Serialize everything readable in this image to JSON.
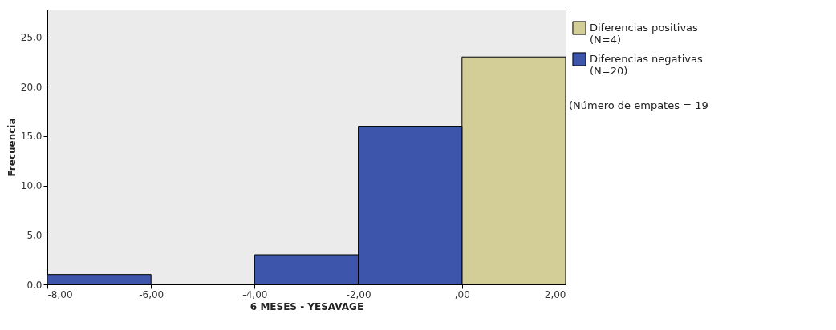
{
  "chart_data": {
    "type": "histogram",
    "xlabel": "6 MESES - YESAVAGE",
    "ylabel": "Frecuencia",
    "bins": [
      -8,
      -6,
      -4,
      -2,
      0,
      2
    ],
    "series": [
      {
        "name": "Diferencias positivas (N=4)",
        "color": "#d3ce97",
        "values": [
          null,
          null,
          null,
          null,
          23
        ]
      },
      {
        "name": "Diferencias negativas (N=20)",
        "color": "#3d56ab",
        "values": [
          1,
          0,
          3,
          16,
          null
        ]
      }
    ],
    "annotations": [
      "(Número de empates = 19"
    ],
    "xlim": [
      -8,
      2
    ],
    "xticks": [
      {
        "value": -8,
        "label": "-8,00"
      },
      {
        "value": -6,
        "label": "-6,00"
      },
      {
        "value": -4,
        "label": "-4,00"
      },
      {
        "value": -2,
        "label": "-2,00"
      },
      {
        "value": 0,
        "label": ",00"
      },
      {
        "value": 2,
        "label": "2,00"
      }
    ],
    "ylim": [
      0,
      27.8
    ],
    "yticks": [
      {
        "value": 0,
        "label": "0,0"
      },
      {
        "value": 5,
        "label": "5,0"
      },
      {
        "value": 10,
        "label": "10,0"
      },
      {
        "value": 15,
        "label": "15,0"
      },
      {
        "value": 20,
        "label": "20,0"
      },
      {
        "value": 25,
        "label": "25,0"
      }
    ],
    "grid": false,
    "legend": "right"
  }
}
